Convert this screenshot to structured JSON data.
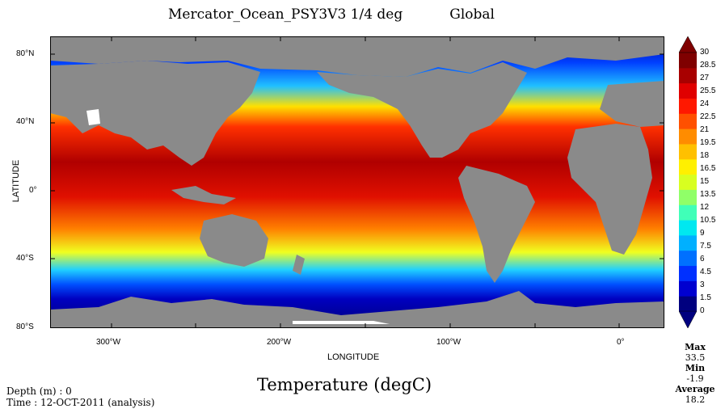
{
  "title": {
    "model": "Mercator_Ocean_PSY3V3 1/4 deg",
    "region": "Global"
  },
  "axes": {
    "ylabel": "LATITUDE",
    "xlabel": "LONGITUDE",
    "yticks": [
      "80°N",
      "40°N",
      "0°",
      "40°S",
      "80°S"
    ],
    "xticks": [
      "300°W",
      "200°W",
      "100°W",
      "0°"
    ]
  },
  "variable": "Temperature (degC)",
  "depth": "Depth (m) : 0",
  "time": "Time : 12-OCT-2011 (analysis)",
  "colorbar": {
    "ticks": [
      "30",
      "28.5",
      "27",
      "25.5",
      "24",
      "22.5",
      "21",
      "19.5",
      "18",
      "16.5",
      "15",
      "13.5",
      "12",
      "10.5",
      "9",
      "7.5",
      "6",
      "4.5",
      "3",
      "1.5",
      "0"
    ],
    "colors": [
      "#00007f",
      "#0000d0",
      "#0030ff",
      "#0070ff",
      "#00b0ff",
      "#00e8f0",
      "#40ffb8",
      "#90ff68",
      "#d8ff20",
      "#fff000",
      "#ffc000",
      "#ff8c00",
      "#ff5000",
      "#ff1800",
      "#e00000",
      "#a80000",
      "#7f0000"
    ]
  },
  "stats": {
    "max_label": "Max",
    "max_value": "33.5",
    "min_label": "Min",
    "min_value": "-1.9",
    "avg_label": "Average",
    "avg_value": "18.2"
  },
  "colors": {
    "land": "#8a8a8a",
    "sea_ice": "#ffffff"
  }
}
